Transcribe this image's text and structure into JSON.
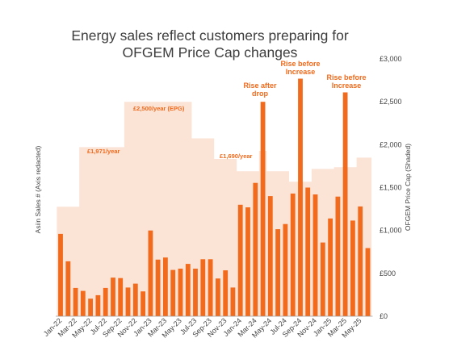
{
  "chart_data": {
    "type": "bar",
    "title_lines": [
      "Energy sales reflect customers preparing for",
      "OFGEM Price Cap changes"
    ],
    "ylabel_left": "Asiin Sales # (Axis redacted)",
    "ylabel_right": "OFGEM Price Cap (Shaded)",
    "right_axis": {
      "ylim": [
        0,
        3000
      ],
      "ticks": [
        0,
        500,
        1000,
        1500,
        2000,
        2500,
        3000
      ],
      "tick_labels": [
        "£0",
        "£500",
        "£1,000",
        "£1,500",
        "£2,000",
        "£2,500",
        "£3,000"
      ]
    },
    "categories": [
      "Jan-22",
      "Feb-22",
      "Mar-22",
      "Apr-22",
      "May-22",
      "Jun-22",
      "Jul-22",
      "Aug-22",
      "Sep-22",
      "Oct-22",
      "Nov-22",
      "Dec-22",
      "Jan-23",
      "Feb-23",
      "Mar-23",
      "Apr-23",
      "May-23",
      "Jun-23",
      "Jul-23",
      "Aug-23",
      "Sep-23",
      "Oct-23",
      "Nov-23",
      "Dec-23",
      "Jan-24",
      "Feb-24",
      "Mar-24",
      "Apr-24",
      "May-24",
      "Jun-24",
      "Jul-24",
      "Aug-24",
      "Sep-24",
      "Oct-24",
      "Nov-24",
      "Dec-24",
      "Jan-25",
      "Feb-25",
      "Mar-25",
      "Apr-25",
      "May-25",
      "Jun-25"
    ],
    "x_tick_labels": [
      "Jan-22",
      "Mar-22",
      "May-22",
      "Jul-22",
      "Sep-22",
      "Nov-22",
      "Jan-23",
      "Mar-23",
      "May-23",
      "Jul-23",
      "Sep-23",
      "Nov-23",
      "Jan-24",
      "Mar-24",
      "May-24",
      "Jul-24",
      "Sep-24",
      "Nov-24",
      "Jan-25",
      "Mar-25",
      "May-25"
    ],
    "series": [
      {
        "axis": "left",
        "color": "#f26a1b",
        "values": [
          960,
          640,
          330,
          295,
          205,
          245,
          330,
          450,
          445,
          335,
          380,
          290,
          1000,
          660,
          685,
          540,
          555,
          610,
          555,
          665,
          665,
          440,
          535,
          335,
          1300,
          1270,
          1555,
          2500,
          1400,
          1015,
          1075,
          1430,
          2770,
          1500,
          1420,
          860,
          1140,
          1395,
          2610,
          1115,
          1280,
          795
        ]
      },
      {
        "axis": "right",
        "type": "area",
        "color": "#fbe3d6",
        "values": [
          1277,
          1277,
          1277,
          1971,
          1971,
          1971,
          1971,
          1971,
          1971,
          2500,
          2500,
          2500,
          2500,
          2500,
          2500,
          2500,
          2500,
          2500,
          2074,
          2074,
          2074,
          1834,
          1834,
          1834,
          1690,
          1690,
          1690,
          1928,
          1690,
          1690,
          1690,
          1568,
          1568,
          1568,
          1717,
          1717,
          1717,
          1738,
          1738,
          1738,
          1849,
          1849
        ]
      }
    ],
    "annotations": [
      {
        "text": "£1,971/year",
        "kind": "cap"
      },
      {
        "text": "£2,500/year (EPG)",
        "kind": "cap"
      },
      {
        "text": "£1,690/year",
        "kind": "cap"
      },
      {
        "text": "Rise after drop",
        "kind": "callout"
      },
      {
        "text": "Rise before Increase",
        "kind": "callout"
      },
      {
        "text": "Rise before Increase",
        "kind": "callout"
      }
    ],
    "grid": false,
    "legend": "none"
  }
}
